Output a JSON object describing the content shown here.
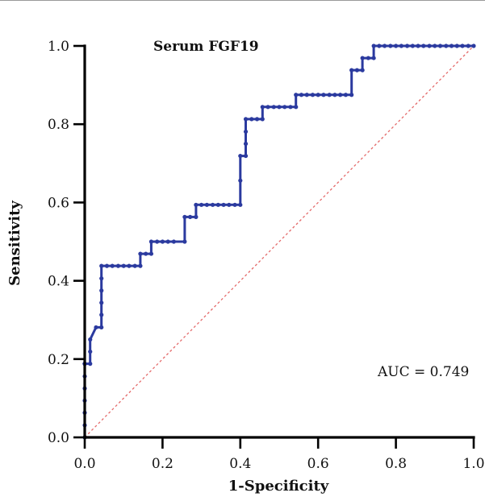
{
  "chart_data": {
    "type": "line",
    "title": "Serum FGF19",
    "xlabel": "1-Specificity",
    "ylabel": "Sensitivity",
    "xlim": [
      0,
      1
    ],
    "ylim": [
      0,
      1
    ],
    "xticks": [
      "0.0",
      "0.2",
      "0.4",
      "0.6",
      "0.8",
      "1.0"
    ],
    "yticks": [
      "0.0",
      "0.2",
      "0.4",
      "0.6",
      "0.8",
      "1.0"
    ],
    "annotation": "AUC = 0.749",
    "grid": false,
    "colors": {
      "roc": "#2b3a9f",
      "reference": "#e46a6a"
    },
    "series": [
      {
        "x": [
          0,
          0,
          0,
          0,
          0,
          0,
          0,
          0,
          0,
          0,
          0.014,
          0.014,
          0.014,
          0.029,
          0.043,
          0.043,
          0.043,
          0.043,
          0.043,
          0.043,
          0.057,
          0.071,
          0.086,
          0.1,
          0.114,
          0.129,
          0.143,
          0.143,
          0.157,
          0.171,
          0.171,
          0.186,
          0.2,
          0.214,
          0.229,
          0.257,
          0.257,
          0.271,
          0.286,
          0.286,
          0.3,
          0.314,
          0.329,
          0.343,
          0.357,
          0.371,
          0.386,
          0.4,
          0.4,
          0.4,
          0.414,
          0.414,
          0.414,
          0.414,
          0.429,
          0.443,
          0.457,
          0.457,
          0.471,
          0.486,
          0.5,
          0.514,
          0.529,
          0.543,
          0.543,
          0.557,
          0.571,
          0.586,
          0.6,
          0.614,
          0.629,
          0.643,
          0.657,
          0.671,
          0.686,
          0.686,
          0.7,
          0.714,
          0.714,
          0.729,
          0.743,
          0.743,
          0.757,
          0.771,
          0.786,
          0.8,
          0.814,
          0.829,
          0.843,
          0.857,
          0.871,
          0.886,
          0.9,
          0.914,
          0.929,
          0.943,
          0.957,
          0.971,
          0.986,
          1.0
        ],
        "y": [
          0,
          0.031,
          0.063,
          0.094,
          0.125,
          0.156,
          0.188,
          0.188,
          0.188,
          0.188,
          0.188,
          0.219,
          0.25,
          0.281,
          0.281,
          0.313,
          0.344,
          0.375,
          0.406,
          0.438,
          0.438,
          0.438,
          0.438,
          0.438,
          0.438,
          0.438,
          0.438,
          0.469,
          0.469,
          0.469,
          0.5,
          0.5,
          0.5,
          0.5,
          0.5,
          0.5,
          0.563,
          0.563,
          0.563,
          0.594,
          0.594,
          0.594,
          0.594,
          0.594,
          0.594,
          0.594,
          0.594,
          0.594,
          0.656,
          0.719,
          0.719,
          0.75,
          0.781,
          0.813,
          0.813,
          0.813,
          0.813,
          0.844,
          0.844,
          0.844,
          0.844,
          0.844,
          0.844,
          0.844,
          0.875,
          0.875,
          0.875,
          0.875,
          0.875,
          0.875,
          0.875,
          0.875,
          0.875,
          0.875,
          0.875,
          0.938,
          0.938,
          0.938,
          0.969,
          0.969,
          0.969,
          1.0,
          1.0,
          1.0,
          1.0,
          1.0,
          1.0,
          1.0,
          1.0,
          1.0,
          1.0,
          1.0,
          1.0,
          1.0,
          1.0,
          1.0,
          1.0,
          1.0,
          1.0,
          1.0
        ]
      }
    ]
  }
}
